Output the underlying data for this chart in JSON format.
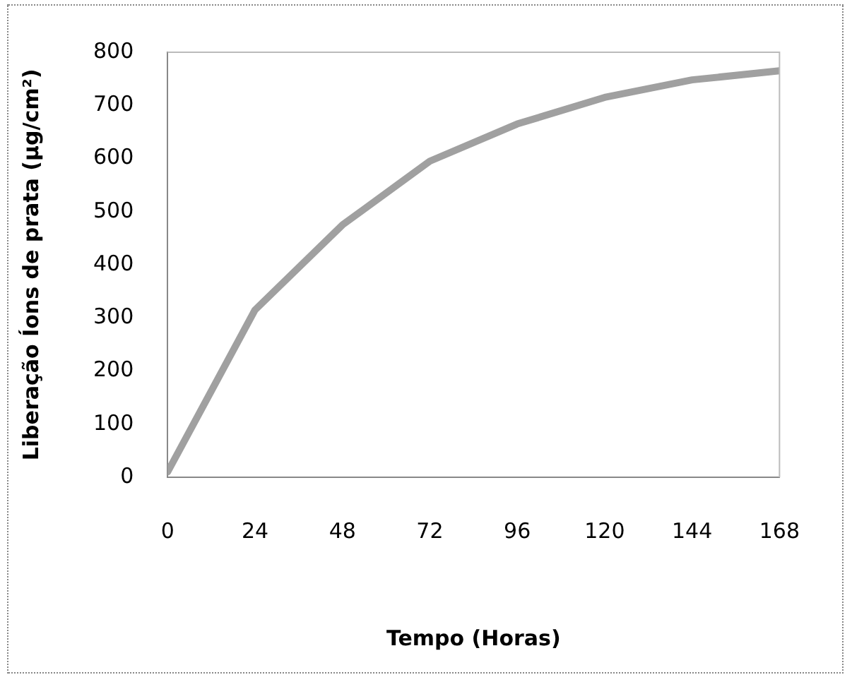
{
  "chart_data": {
    "type": "line",
    "xlabel": "Tempo (Horas)",
    "ylabel": "Liberação Íons de prata (µg/cm²)",
    "x": [
      0,
      24,
      48,
      72,
      96,
      120,
      144,
      168
    ],
    "series": [
      {
        "color": "#a0a0a0",
        "values": [
          10,
          315,
          475,
          595,
          665,
          715,
          748,
          765
        ]
      }
    ],
    "xlim": [
      0,
      168
    ],
    "xticks": [
      0,
      24,
      48,
      72,
      96,
      120,
      144,
      168
    ],
    "ylim": [
      0,
      800
    ],
    "yticks": [
      0,
      100,
      200,
      300,
      400,
      500,
      600,
      700,
      800
    ],
    "grid": false,
    "legend": false,
    "marker": "none",
    "line_style": "solid"
  }
}
